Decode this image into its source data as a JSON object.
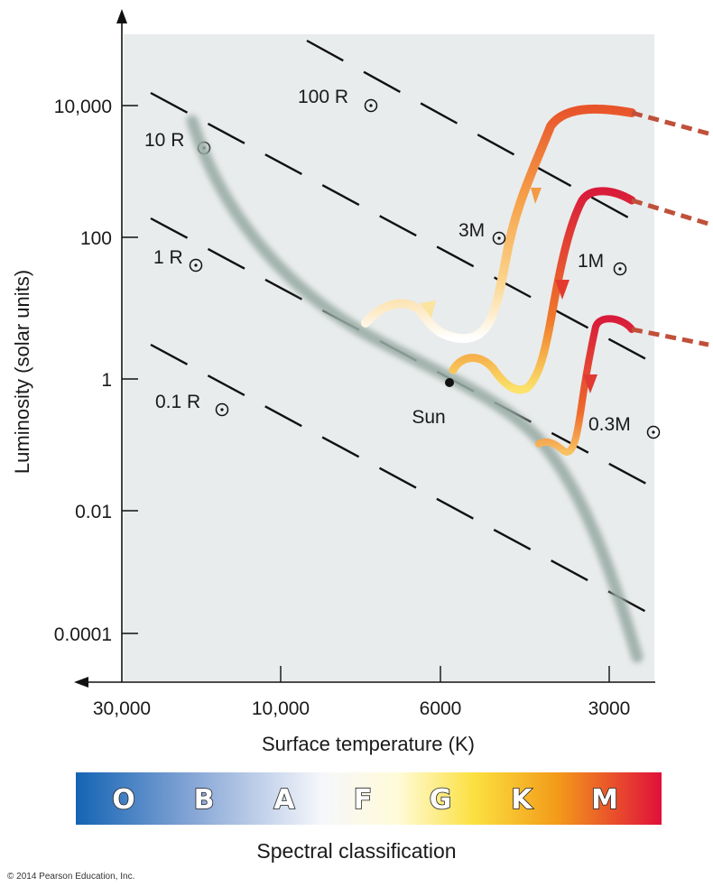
{
  "axes": {
    "x_title": "Surface temperature (K)",
    "y_title": "Luminosity (solar units)",
    "x_ticks": [
      "30,000",
      "10,000",
      "6000",
      "3000"
    ],
    "y_ticks": [
      "10,000",
      "100",
      "1",
      "0.01",
      "0.0001"
    ]
  },
  "radius_lines": [
    "100 R",
    "10 R",
    "1 R",
    "0.1 R"
  ],
  "tracks": {
    "m3": "3M",
    "m1": "1M",
    "m03": "0.3M"
  },
  "sun_label": "Sun",
  "spectral": {
    "title": "Spectral classification",
    "classes": [
      "O",
      "B",
      "A",
      "F",
      "G",
      "K",
      "M"
    ]
  },
  "colors": {
    "plot_bg": "#e9ecec",
    "main_sequence": "#9aaca6",
    "track_hot": "#e11d3a",
    "track_warm": "#f07a2a",
    "track_cool": "#f6c46a"
  },
  "copyright": "© 2014 Pearson Education, Inc."
}
